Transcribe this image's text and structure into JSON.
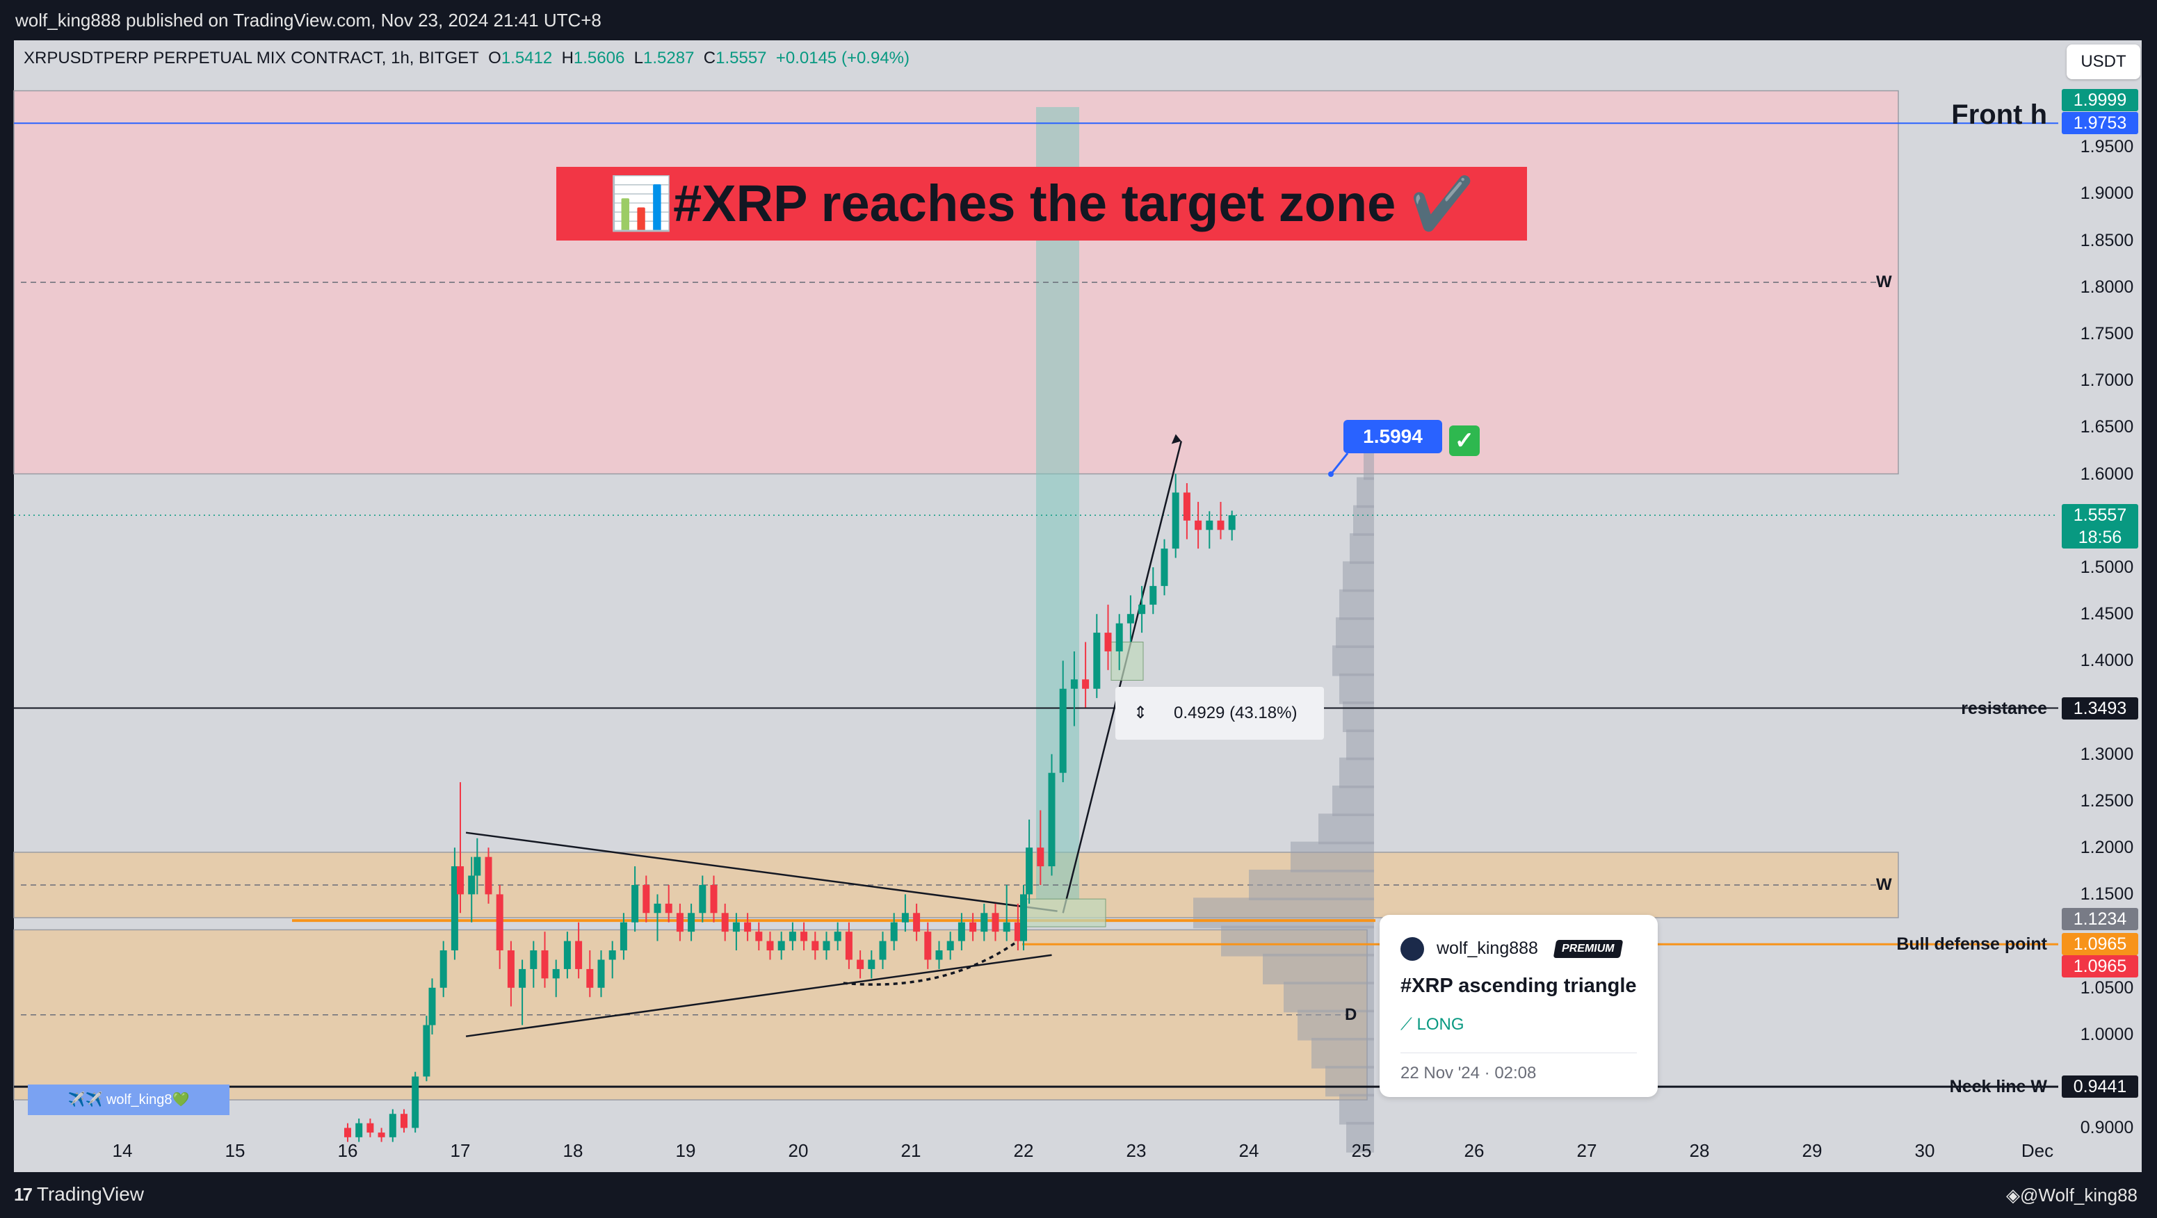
{
  "header": {
    "publisher_line": "wolf_king888 published on TradingView.com, Nov 23, 2024 21:41 UTC+8"
  },
  "symbol": {
    "name": "XRPUSDTPERP PERPETUAL MIX CONTRACT, 1h, BITGET",
    "open_label": "O",
    "open": "1.5412",
    "high_label": "H",
    "high": "1.5606",
    "low_label": "L",
    "low": "1.5287",
    "close_label": "C",
    "close": "1.5557",
    "change": "+0.0145 (+0.94%)"
  },
  "currency_button": "USDT",
  "banner": {
    "icon": "bar-chart-emoji",
    "text": "#XRP reaches the target zone ✔️"
  },
  "measure": {
    "icon": "measure-range-icon",
    "text": "0.4929 (43.18%)"
  },
  "callout": {
    "value": "1.5994",
    "check": "✓"
  },
  "idea_card": {
    "username": "wolf_king888",
    "badge": "PREMIUM",
    "title": "#XRP ascending triangle",
    "direction": "⟋ LONG",
    "date": "22 Nov '24 · 02:08"
  },
  "watermark": "✈️✈️ wolf_king8💚",
  "footer": {
    "brand_mark": "17",
    "brand": "TradingView",
    "author_handle": "◈@Wolf_king88"
  },
  "chart_data": {
    "type": "candlestick",
    "price_axis": {
      "range": [
        0.88,
        2.03
      ],
      "ticks": [
        "1.9500",
        "1.9000",
        "1.8500",
        "1.8000",
        "1.7500",
        "1.7000",
        "1.6500",
        "1.6000",
        "1.5000",
        "1.4500",
        "1.4000",
        "1.3000",
        "1.2500",
        "1.2000",
        "1.1500",
        "1.0500",
        "1.0000",
        "0.9000"
      ]
    },
    "time_axis": {
      "labels": [
        "14",
        "15",
        "16",
        "17",
        "18",
        "19",
        "20",
        "21",
        "22",
        "23",
        "24",
        "25",
        "26",
        "27",
        "28",
        "29",
        "30",
        "Dec"
      ]
    },
    "price_tags": [
      {
        "value": "1.9999",
        "color": "#089981"
      },
      {
        "value": "1.9753",
        "color": "#2962ff"
      },
      {
        "value": "1.5557",
        "sub": "18:56",
        "color": "#089981"
      },
      {
        "value": "1.3493",
        "color": "#131722"
      },
      {
        "value": "1.1234",
        "color": "#787b86"
      },
      {
        "value": "1.0965",
        "color": "#f7931a"
      },
      {
        "value": "1.0965",
        "color": "#f23645"
      },
      {
        "value": "0.9441",
        "color": "#131722"
      }
    ],
    "horizontal_levels": [
      {
        "label": "Front h",
        "price": 1.9753,
        "color": "#2962ff"
      },
      {
        "label": "resistance",
        "price": 1.3493,
        "color": "#131722"
      },
      {
        "label": "Bull defense point",
        "price": 1.0965,
        "color": "#f7931a"
      },
      {
        "label": "Neck line W",
        "price": 0.9441,
        "color": "#131722"
      }
    ],
    "zone_letters": [
      {
        "label": "W",
        "price": 1.805
      },
      {
        "label": "W",
        "price": 1.16
      },
      {
        "label": "D",
        "price": 1.021
      }
    ],
    "zones": [
      {
        "name": "target-zone",
        "from": 1.6,
        "to": 2.01,
        "color": "#f2c6cc"
      },
      {
        "name": "upper-demand",
        "from": 1.125,
        "to": 1.195,
        "color": "#e8c9a0"
      },
      {
        "name": "lower-demand",
        "from": 0.93,
        "to": 1.112,
        "color": "#e8c9a0"
      }
    ],
    "candles": [
      [
        16.0,
        0.9,
        0.905,
        0.885,
        0.89
      ],
      [
        16.1,
        0.89,
        0.91,
        0.885,
        0.905
      ],
      [
        16.2,
        0.905,
        0.91,
        0.89,
        0.895
      ],
      [
        16.3,
        0.895,
        0.9,
        0.885,
        0.89
      ],
      [
        16.4,
        0.89,
        0.92,
        0.885,
        0.915
      ],
      [
        16.5,
        0.915,
        0.92,
        0.895,
        0.9
      ],
      [
        16.6,
        0.9,
        0.96,
        0.895,
        0.955
      ],
      [
        16.7,
        0.955,
        1.02,
        0.95,
        1.01
      ],
      [
        16.75,
        1.01,
        1.06,
        1.0,
        1.05
      ],
      [
        16.85,
        1.05,
        1.1,
        1.04,
        1.09
      ],
      [
        16.95,
        1.09,
        1.2,
        1.08,
        1.18
      ],
      [
        17.0,
        1.18,
        1.27,
        1.13,
        1.15
      ],
      [
        17.1,
        1.15,
        1.19,
        1.12,
        1.17
      ],
      [
        17.15,
        1.17,
        1.21,
        1.15,
        1.19
      ],
      [
        17.25,
        1.19,
        1.2,
        1.14,
        1.15
      ],
      [
        17.35,
        1.15,
        1.16,
        1.07,
        1.09
      ],
      [
        17.45,
        1.09,
        1.1,
        1.03,
        1.05
      ],
      [
        17.55,
        1.05,
        1.08,
        1.01,
        1.07
      ],
      [
        17.65,
        1.07,
        1.1,
        1.05,
        1.09
      ],
      [
        17.75,
        1.09,
        1.11,
        1.05,
        1.06
      ],
      [
        17.85,
        1.06,
        1.08,
        1.04,
        1.07
      ],
      [
        17.95,
        1.07,
        1.11,
        1.06,
        1.1
      ],
      [
        18.05,
        1.1,
        1.12,
        1.06,
        1.07
      ],
      [
        18.15,
        1.07,
        1.09,
        1.04,
        1.05
      ],
      [
        18.25,
        1.05,
        1.09,
        1.04,
        1.08
      ],
      [
        18.35,
        1.08,
        1.1,
        1.06,
        1.09
      ],
      [
        18.45,
        1.09,
        1.13,
        1.08,
        1.12
      ],
      [
        18.55,
        1.12,
        1.18,
        1.11,
        1.16
      ],
      [
        18.65,
        1.16,
        1.17,
        1.12,
        1.13
      ],
      [
        18.75,
        1.13,
        1.15,
        1.1,
        1.14
      ],
      [
        18.85,
        1.14,
        1.16,
        1.12,
        1.13
      ],
      [
        18.95,
        1.13,
        1.14,
        1.1,
        1.11
      ],
      [
        19.05,
        1.11,
        1.14,
        1.1,
        1.13
      ],
      [
        19.15,
        1.13,
        1.17,
        1.12,
        1.16
      ],
      [
        19.25,
        1.16,
        1.17,
        1.12,
        1.13
      ],
      [
        19.35,
        1.13,
        1.14,
        1.1,
        1.11
      ],
      [
        19.45,
        1.11,
        1.13,
        1.09,
        1.12
      ],
      [
        19.55,
        1.12,
        1.13,
        1.1,
        1.11
      ],
      [
        19.65,
        1.11,
        1.12,
        1.09,
        1.1
      ],
      [
        19.75,
        1.1,
        1.11,
        1.08,
        1.09
      ],
      [
        19.85,
        1.09,
        1.11,
        1.08,
        1.1
      ],
      [
        19.95,
        1.1,
        1.12,
        1.09,
        1.11
      ],
      [
        20.05,
        1.11,
        1.12,
        1.09,
        1.1
      ],
      [
        20.15,
        1.1,
        1.11,
        1.08,
        1.09
      ],
      [
        20.25,
        1.09,
        1.11,
        1.08,
        1.1
      ],
      [
        20.35,
        1.1,
        1.12,
        1.09,
        1.11
      ],
      [
        20.45,
        1.11,
        1.12,
        1.07,
        1.08
      ],
      [
        20.55,
        1.08,
        1.09,
        1.06,
        1.07
      ],
      [
        20.65,
        1.07,
        1.09,
        1.06,
        1.08
      ],
      [
        20.75,
        1.08,
        1.11,
        1.07,
        1.1
      ],
      [
        20.85,
        1.1,
        1.13,
        1.09,
        1.12
      ],
      [
        20.95,
        1.12,
        1.15,
        1.11,
        1.13
      ],
      [
        21.05,
        1.13,
        1.14,
        1.1,
        1.11
      ],
      [
        21.15,
        1.11,
        1.12,
        1.07,
        1.08
      ],
      [
        21.25,
        1.08,
        1.1,
        1.07,
        1.09
      ],
      [
        21.35,
        1.09,
        1.11,
        1.08,
        1.1
      ],
      [
        21.45,
        1.1,
        1.13,
        1.09,
        1.12
      ],
      [
        21.55,
        1.12,
        1.13,
        1.1,
        1.11
      ],
      [
        21.65,
        1.11,
        1.14,
        1.1,
        1.13
      ],
      [
        21.75,
        1.13,
        1.14,
        1.1,
        1.11
      ],
      [
        21.85,
        1.11,
        1.16,
        1.1,
        1.12
      ],
      [
        21.95,
        1.12,
        1.14,
        1.09,
        1.1
      ],
      [
        22.0,
        1.1,
        1.16,
        1.09,
        1.15
      ],
      [
        22.05,
        1.15,
        1.23,
        1.14,
        1.2
      ],
      [
        22.15,
        1.2,
        1.24,
        1.16,
        1.18
      ],
      [
        22.25,
        1.18,
        1.3,
        1.17,
        1.28
      ],
      [
        22.35,
        1.28,
        1.4,
        1.27,
        1.37
      ],
      [
        22.45,
        1.37,
        1.41,
        1.33,
        1.38
      ],
      [
        22.55,
        1.38,
        1.42,
        1.35,
        1.37
      ],
      [
        22.65,
        1.37,
        1.45,
        1.36,
        1.43
      ],
      [
        22.75,
        1.43,
        1.46,
        1.39,
        1.41
      ],
      [
        22.85,
        1.41,
        1.45,
        1.39,
        1.44
      ],
      [
        22.95,
        1.44,
        1.47,
        1.42,
        1.45
      ],
      [
        23.05,
        1.45,
        1.48,
        1.43,
        1.46
      ],
      [
        23.15,
        1.46,
        1.5,
        1.45,
        1.48
      ],
      [
        23.25,
        1.48,
        1.53,
        1.47,
        1.52
      ],
      [
        23.35,
        1.52,
        1.6,
        1.51,
        1.58
      ],
      [
        23.45,
        1.58,
        1.59,
        1.53,
        1.55
      ],
      [
        23.55,
        1.55,
        1.57,
        1.52,
        1.54
      ],
      [
        23.65,
        1.54,
        1.56,
        1.52,
        1.55
      ],
      [
        23.75,
        1.55,
        1.57,
        1.53,
        1.54
      ],
      [
        23.85,
        1.54,
        1.5606,
        1.5287,
        1.5557
      ]
    ],
    "volume_profile": [
      [
        0.89,
        40
      ],
      [
        0.92,
        50
      ],
      [
        0.95,
        70
      ],
      [
        0.98,
        90
      ],
      [
        1.01,
        110
      ],
      [
        1.04,
        130
      ],
      [
        1.07,
        160
      ],
      [
        1.1,
        220
      ],
      [
        1.13,
        260
      ],
      [
        1.16,
        180
      ],
      [
        1.19,
        120
      ],
      [
        1.22,
        80
      ],
      [
        1.25,
        60
      ],
      [
        1.28,
        50
      ],
      [
        1.31,
        40
      ],
      [
        1.34,
        45
      ],
      [
        1.37,
        50
      ],
      [
        1.4,
        60
      ],
      [
        1.43,
        55
      ],
      [
        1.46,
        50
      ],
      [
        1.49,
        45
      ],
      [
        1.52,
        35
      ],
      [
        1.55,
        30
      ],
      [
        1.58,
        25
      ],
      [
        1.61,
        15
      ]
    ]
  }
}
